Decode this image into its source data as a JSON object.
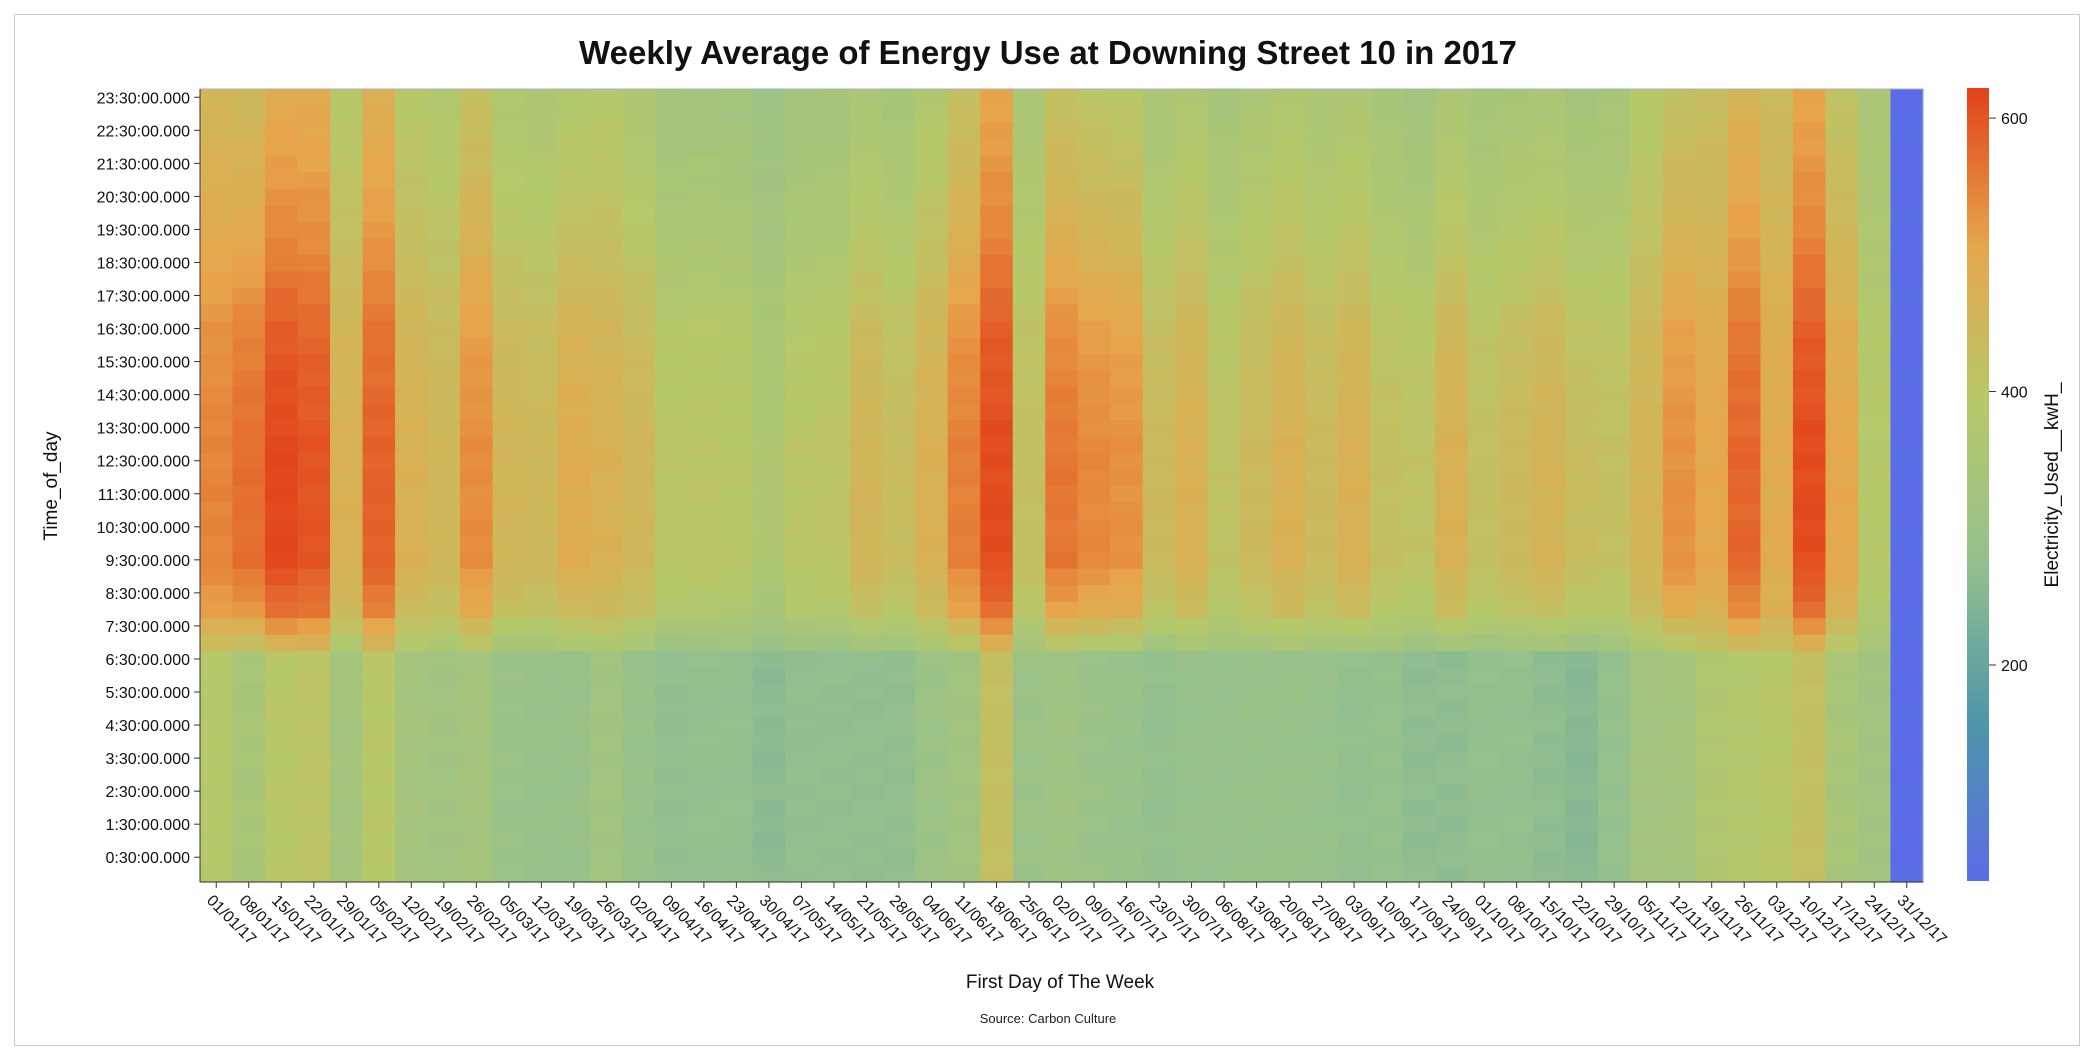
{
  "chart_data": {
    "type": "heatmap",
    "title": "Weekly Average of Energy Use at Downing Street 10 in 2017",
    "source": "Source: Carbon Culture",
    "xlabel": "First Day of The Week",
    "ylabel": "Time_of_day",
    "colorbar_label": "Electricity_Used__kwH_",
    "colorbar_ticks": [
      200,
      400,
      600
    ],
    "colorbar_range": [
      42,
      622
    ],
    "colorscale": [
      "#5b6ce8",
      "#4e96aa",
      "#94c08e",
      "#b6c96a",
      "#e7a64c",
      "#e2421a"
    ],
    "x_categories": [
      "01/01/17",
      "08/01/17",
      "15/01/17",
      "22/01/17",
      "29/01/17",
      "05/02/17",
      "12/02/17",
      "19/02/17",
      "26/02/17",
      "05/03/17",
      "12/03/17",
      "19/03/17",
      "26/03/17",
      "02/04/17",
      "09/04/17",
      "16/04/17",
      "23/04/17",
      "30/04/17",
      "07/05/17",
      "14/05/17",
      "21/05/17",
      "28/05/17",
      "04/06/17",
      "11/06/17",
      "18/06/17",
      "25/06/17",
      "02/07/17",
      "09/07/17",
      "16/07/17",
      "23/07/17",
      "30/07/17",
      "06/08/17",
      "13/08/17",
      "20/08/17",
      "27/08/17",
      "03/09/17",
      "10/09/17",
      "17/09/17",
      "24/09/17",
      "01/10/17",
      "08/10/17",
      "15/10/17",
      "22/10/17",
      "29/10/17",
      "05/11/17",
      "12/11/17",
      "19/11/17",
      "26/11/17",
      "03/12/17",
      "10/12/17",
      "17/12/17",
      "24/12/17",
      "31/12/17"
    ],
    "y_tick_labels": [
      "0:30:00.000",
      "1:30:00.000",
      "2:30:00.000",
      "3:30:00.000",
      "4:30:00.000",
      "5:30:00.000",
      "6:30:00.000",
      "7:30:00.000",
      "8:30:00.000",
      "9:30:00.000",
      "10:30:00.000",
      "11:30:00.000",
      "12:30:00.000",
      "13:30:00.000",
      "14:30:00.000",
      "15:30:00.000",
      "16:30:00.000",
      "17:30:00.000",
      "18:30:00.000",
      "19:30:00.000",
      "20:30:00.000",
      "21:30:00.000",
      "22:30:00.000",
      "23:30:00.000"
    ],
    "y_slots_per_hour": 2,
    "y_first_slot_label_index": 1,
    "weekly_daytime_peak": [
      545,
      570,
      615,
      600,
      470,
      585,
      470,
      450,
      535,
      455,
      445,
      485,
      470,
      450,
      400,
      400,
      395,
      365,
      400,
      405,
      455,
      430,
      470,
      550,
      610,
      420,
      560,
      540,
      530,
      440,
      470,
      410,
      440,
      470,
      440,
      470,
      420,
      410,
      470,
      420,
      440,
      460,
      430,
      420,
      460,
      530,
      500,
      580,
      490,
      610,
      500,
      390,
      42
    ],
    "weekly_night_base": [
      385,
      345,
      395,
      405,
      330,
      395,
      330,
      320,
      330,
      295,
      290,
      290,
      320,
      290,
      270,
      275,
      275,
      260,
      270,
      270,
      270,
      270,
      300,
      320,
      420,
      300,
      310,
      295,
      290,
      275,
      285,
      285,
      290,
      290,
      285,
      275,
      280,
      265,
      265,
      275,
      275,
      265,
      255,
      280,
      325,
      330,
      370,
      380,
      395,
      420,
      345,
      320,
      42
    ]
  }
}
